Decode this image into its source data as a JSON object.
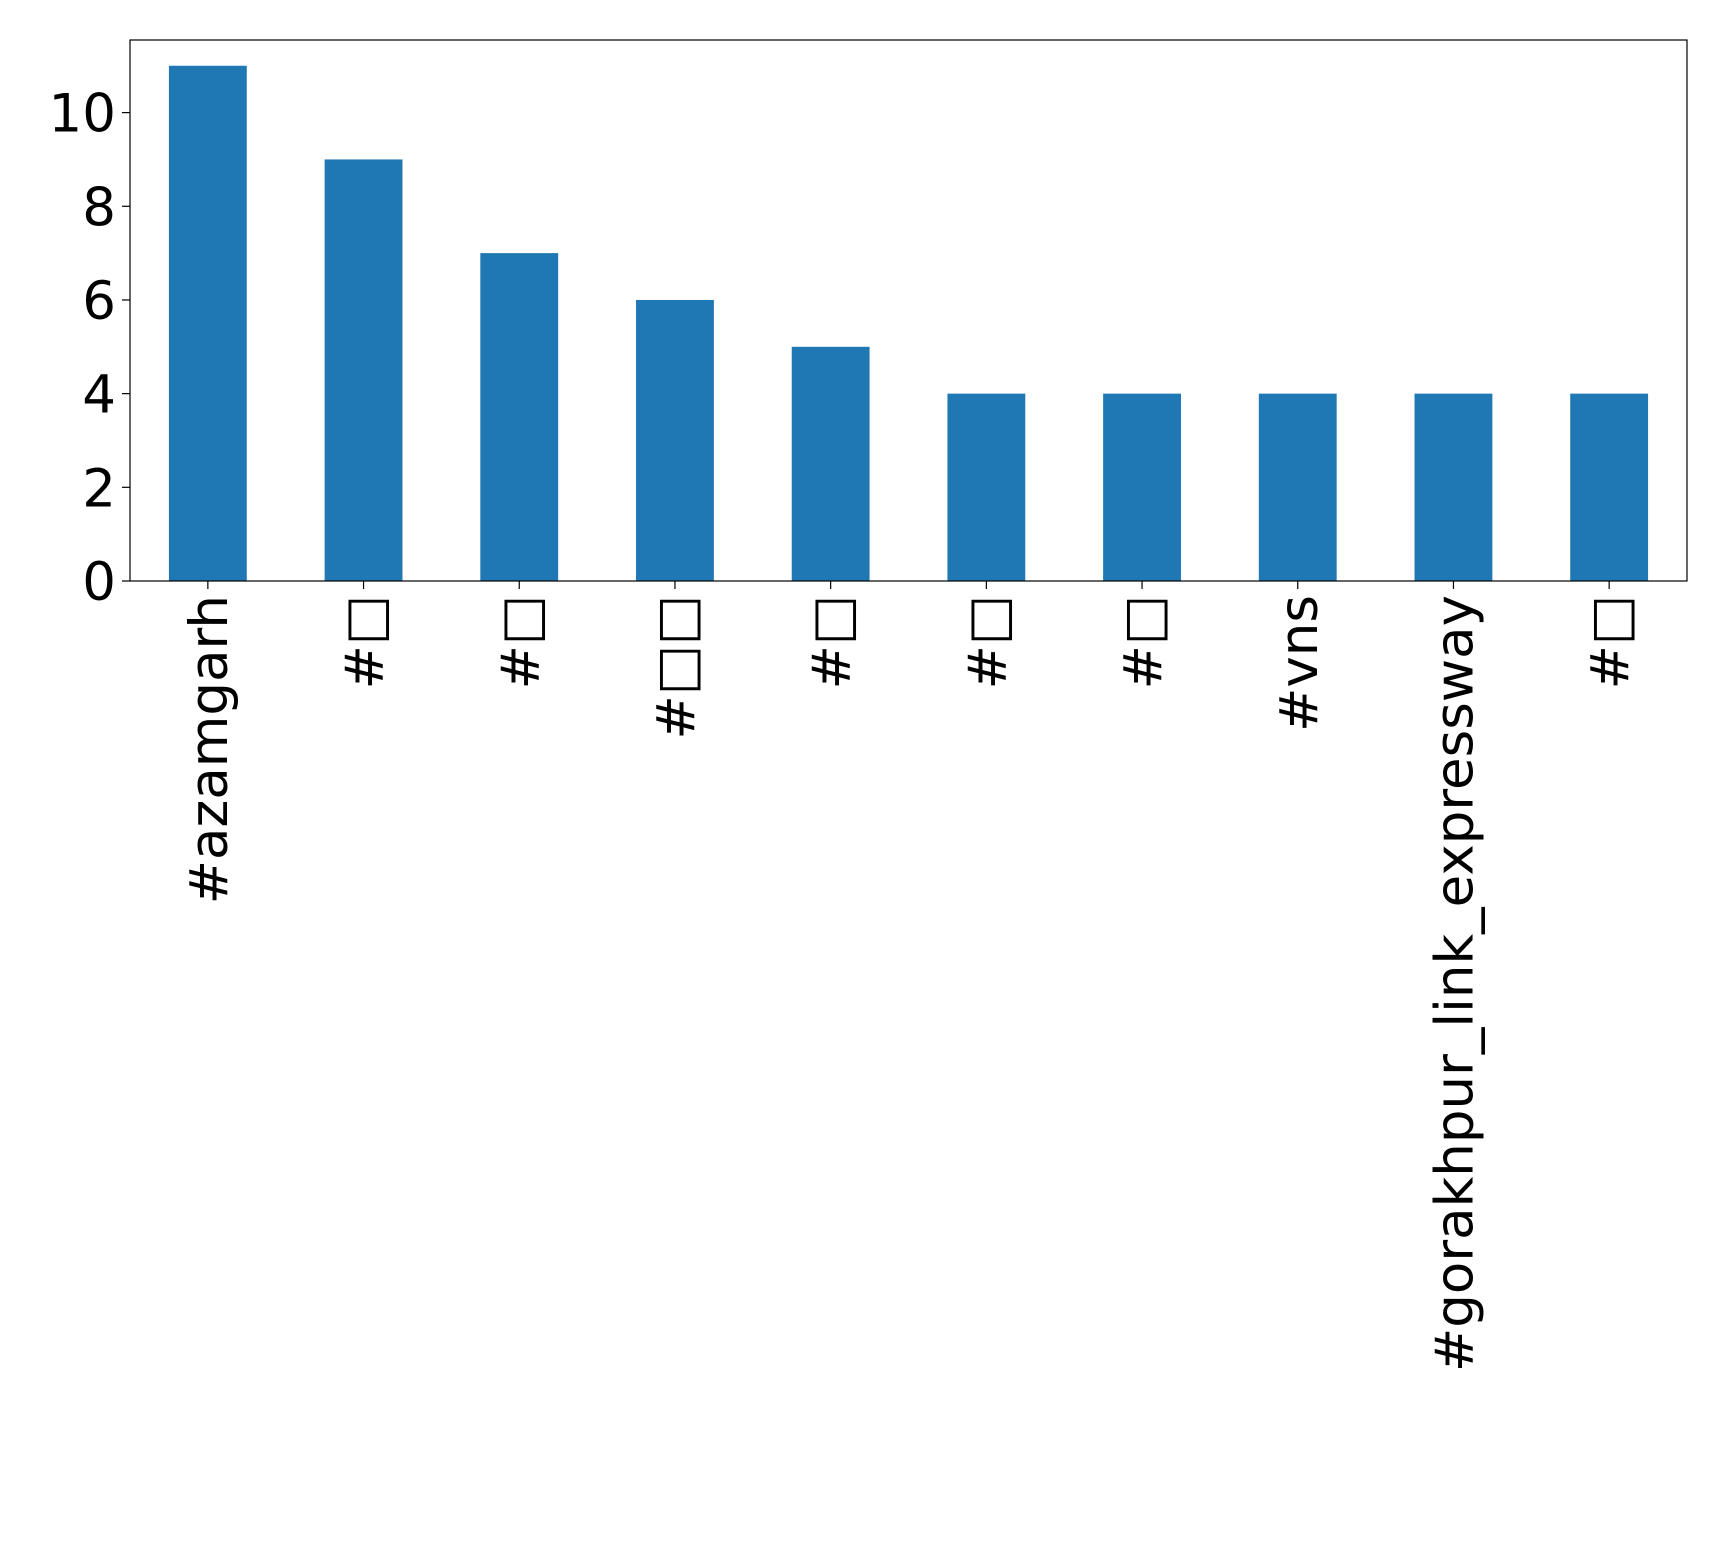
{
  "chart_data": {
    "type": "bar",
    "categories": [
      "#azamgarh",
      "#□",
      "#□",
      "#□□",
      "#□",
      "#□",
      "#□",
      "#vns",
      "#gorakhpur_link_expressway",
      "#□"
    ],
    "values": [
      11,
      9,
      7,
      6,
      5,
      4,
      4,
      4,
      4,
      4
    ],
    "color": "#1f77b4",
    "ylim": [
      0,
      11.55
    ],
    "yticks": [
      0,
      2,
      4,
      6,
      8,
      10
    ],
    "grid": false
  }
}
